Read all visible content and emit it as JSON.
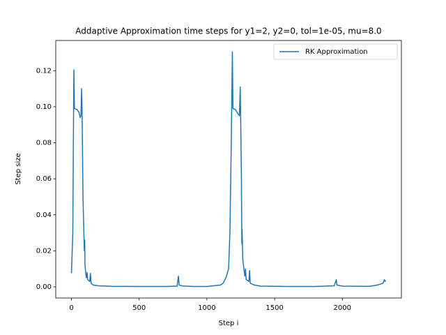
{
  "chart_data": {
    "type": "line",
    "title": "Addaptive Approximation time steps for y1=2, y2=0, tol=1e-05, mu=8.0",
    "xlabel": "Step i",
    "ylabel": "Step size",
    "legend": "upper right",
    "xlim": [
      -116,
      2436
    ],
    "ylim": [
      -0.0062,
      0.1368
    ],
    "xticks": [
      0,
      500,
      1000,
      1500,
      2000
    ],
    "yticks": [
      {
        "value": 0,
        "label": "0.00"
      },
      {
        "value": 0.02,
        "label": "0.02"
      },
      {
        "value": 0.04,
        "label": "0.04"
      },
      {
        "value": 0.06,
        "label": "0.06"
      },
      {
        "value": 0.08,
        "label": "0.08"
      },
      {
        "value": 0.1,
        "label": "0.10"
      },
      {
        "value": 0.12,
        "label": "0.12"
      }
    ],
    "series": [
      {
        "name": "RK Approximation",
        "color": "#1f77b4",
        "x": [
          0,
          10,
          15,
          18,
          22,
          40,
          55,
          65,
          70,
          75,
          78,
          85,
          95,
          98,
          100,
          105,
          110,
          115,
          120,
          135,
          140,
          145,
          160,
          200,
          300,
          500,
          700,
          780,
          790,
          795,
          820,
          900,
          1000,
          1100,
          1120,
          1140,
          1160,
          1170,
          1180,
          1188,
          1192,
          1210,
          1230,
          1240,
          1246,
          1250,
          1255,
          1258,
          1260,
          1265,
          1280,
          1285,
          1290,
          1310,
          1315,
          1320,
          1350,
          1400,
          1600,
          1800,
          1940,
          1955,
          1960,
          2000,
          2200,
          2260,
          2300,
          2310,
          2315,
          2320
        ],
        "values": [
          0.0075,
          0.03,
          0.09,
          0.1205,
          0.099,
          0.0985,
          0.097,
          0.094,
          0.095,
          0.11,
          0.1,
          0.05,
          0.02,
          0.026,
          0.012,
          0.008,
          0.005,
          0.008,
          0.004,
          0.003,
          0.0075,
          0.002,
          0.001,
          0.0006,
          0.0003,
          0.0002,
          0.0002,
          0.0004,
          0.006,
          0.001,
          0.0005,
          0.0002,
          0.0002,
          0.001,
          0.002,
          0.005,
          0.01,
          0.03,
          0.08,
          0.1305,
          0.099,
          0.0985,
          0.096,
          0.095,
          0.111,
          0.09,
          0.06,
          0.024,
          0.032,
          0.015,
          0.006,
          0.01,
          0.004,
          0.003,
          0.009,
          0.002,
          0.001,
          0.0004,
          0.0002,
          0.0002,
          0.0006,
          0.004,
          0.001,
          0.0004,
          0.0003,
          0.001,
          0.002,
          0.004,
          0.003,
          0.0035
        ]
      }
    ]
  }
}
